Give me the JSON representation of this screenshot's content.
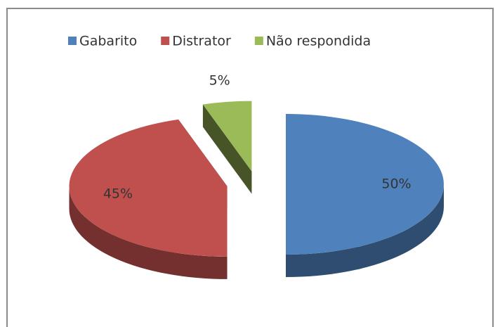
{
  "chart_data": {
    "type": "pie",
    "categories": [
      "Gabarito",
      "Distrator",
      "Não respondida"
    ],
    "values": [
      50,
      45,
      5
    ],
    "value_labels": [
      "50%",
      "45%",
      "5%"
    ],
    "colors": [
      "#4f81bd",
      "#c0504d",
      "#9bbb59"
    ],
    "legend": "top"
  }
}
